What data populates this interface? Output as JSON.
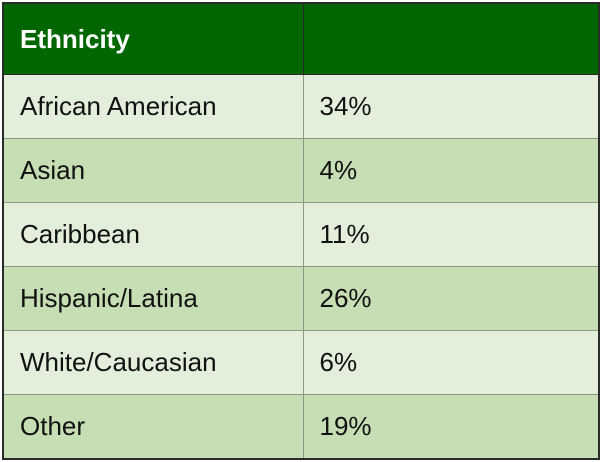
{
  "table": {
    "header": {
      "title": "Ethnicity"
    },
    "rows": [
      [
        "African American",
        "34%"
      ],
      [
        "Asian",
        "4%"
      ],
      [
        "Caribbean",
        "11%"
      ],
      [
        "Hispanic/Latina",
        "26%"
      ],
      [
        "White/Caucasian",
        "6%"
      ],
      [
        "Other",
        "19%"
      ]
    ]
  }
}
